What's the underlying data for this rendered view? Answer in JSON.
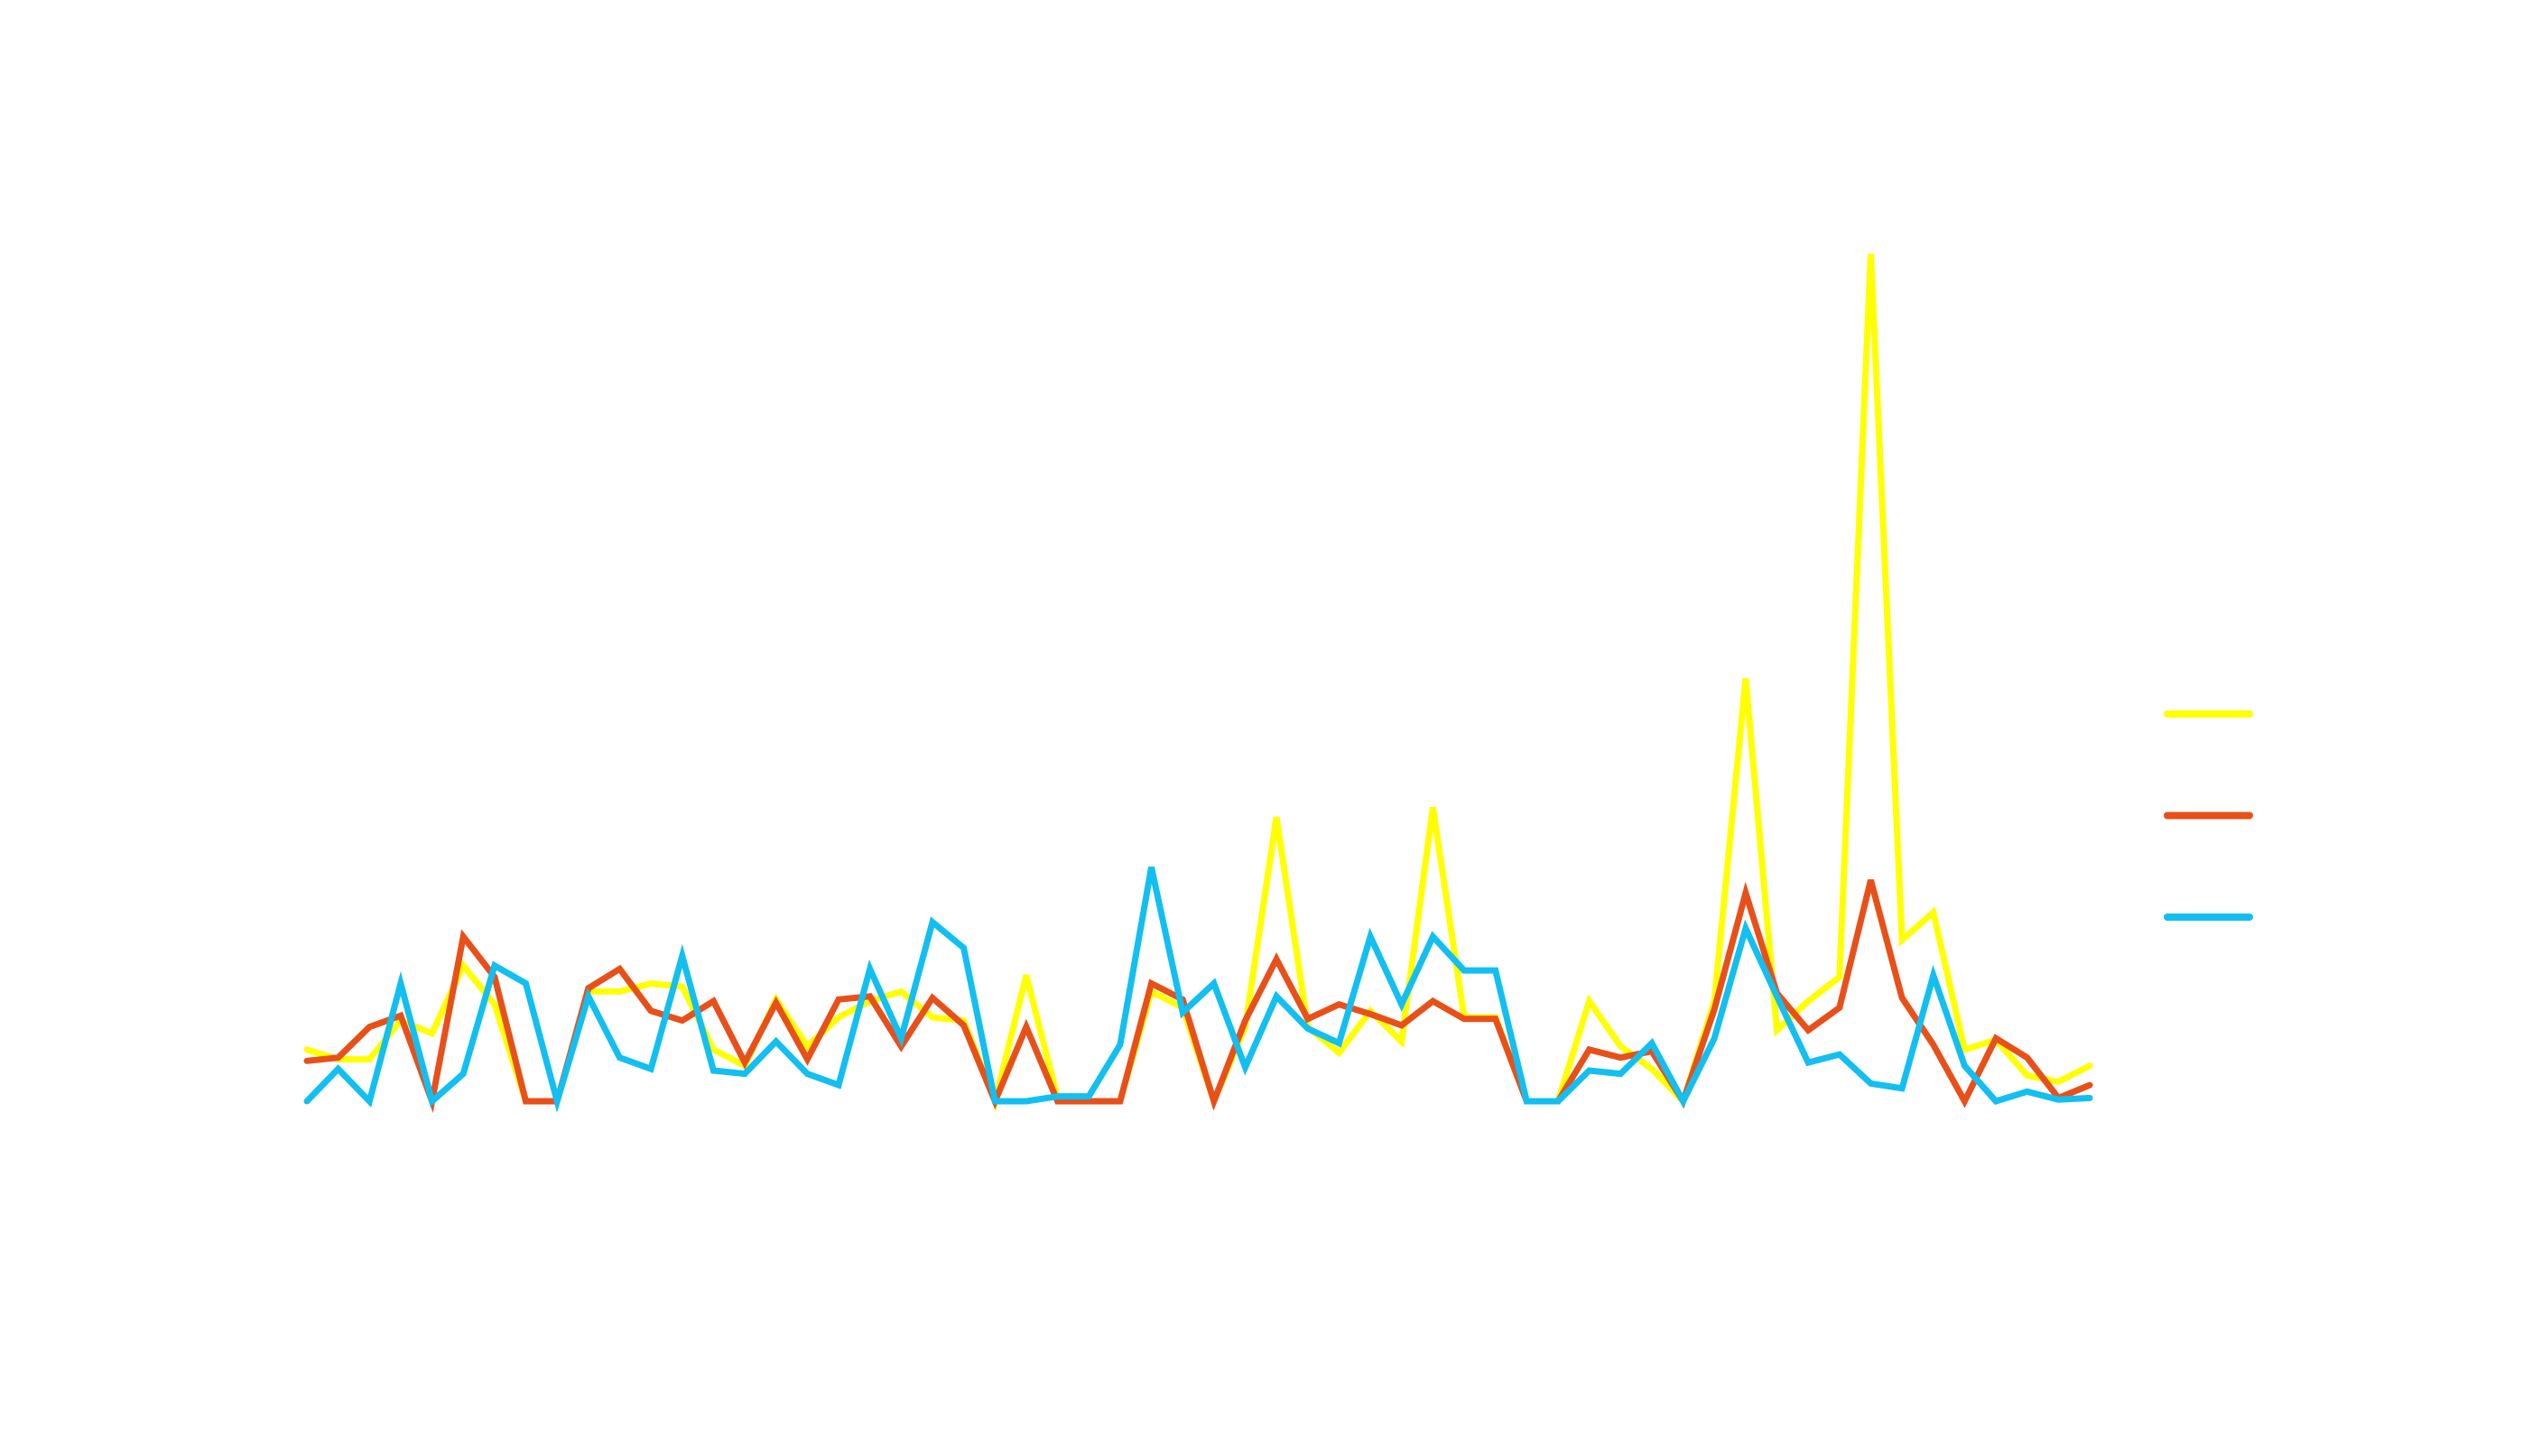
{
  "chart_data": {
    "type": "line",
    "categories": [
      null,
      null,
      null,
      null,
      null,
      null,
      null,
      null,
      null,
      null,
      null,
      null,
      null,
      null,
      null,
      null,
      null,
      null,
      null,
      null,
      null,
      null,
      null,
      null,
      null,
      null,
      null,
      null,
      null,
      null,
      null,
      null,
      null,
      null,
      null,
      null,
      null,
      null,
      null,
      null,
      null,
      null,
      null,
      null,
      null,
      null,
      null,
      null,
      null,
      null,
      null,
      null,
      null,
      null,
      null,
      null,
      null,
      null
    ],
    "ylim": [
      0,
      120
    ],
    "legend": "right",
    "series": [
      {
        "color": "#ffff00",
        "values": [
          6.4,
          5.2,
          5.2,
          10,
          8.4,
          16.8,
          12,
          0,
          0,
          13.6,
          13.6,
          14.6,
          14.2,
          6.4,
          4.4,
          12.6,
          6.8,
          10.4,
          12.4,
          13.6,
          10.4,
          10,
          0,
          15.6,
          0.4,
          0,
          0,
          13.6,
          11.6,
          0,
          9.2,
          35.2,
          9.2,
          6,
          11.2,
          7.4,
          36.4,
          10.4,
          10.4,
          0,
          0,
          12.4,
          6.8,
          4,
          0,
          12.4,
          52.4,
          8.8,
          12.4,
          15.4,
          105,
          20,
          23.4,
          6.4,
          7.6,
          3.2,
          2.4,
          4.4
        ]
      },
      {
        "color": "#e8501a",
        "values": [
          5,
          5.4,
          9.2,
          10.6,
          0,
          20.4,
          15.4,
          0,
          0,
          14,
          16.4,
          11.2,
          10,
          12.4,
          4.8,
          12.2,
          5.2,
          12.6,
          13,
          6.8,
          12.8,
          9.4,
          0,
          9.2,
          0,
          0,
          0,
          14.6,
          12.6,
          0,
          10,
          17.6,
          10.2,
          12,
          10.8,
          9.4,
          12.4,
          10.2,
          10.2,
          0,
          0,
          6.4,
          5.4,
          6.2,
          0,
          11.4,
          25.8,
          13.4,
          8.8,
          11.6,
          27.4,
          12.8,
          7,
          0,
          7.8,
          5.4,
          0.4,
          2
        ]
      },
      {
        "color": "#12bff0",
        "values": [
          0,
          4,
          0,
          14.6,
          0,
          3.4,
          16.8,
          14.6,
          0,
          13,
          5.4,
          4,
          18,
          3.8,
          3.4,
          7.4,
          3.4,
          2,
          16.4,
          7.8,
          22.2,
          19,
          0,
          0,
          0.6,
          0.6,
          7,
          29,
          11,
          14.6,
          4.2,
          13,
          9,
          7.2,
          20.4,
          12,
          20.4,
          16.2,
          16.2,
          0,
          0,
          3.8,
          3.4,
          7.2,
          0,
          7.8,
          21.4,
          13,
          4.8,
          5.8,
          2.2,
          1.6,
          15.6,
          4.4,
          0,
          1.2,
          0.2,
          0.4
        ]
      }
    ]
  }
}
